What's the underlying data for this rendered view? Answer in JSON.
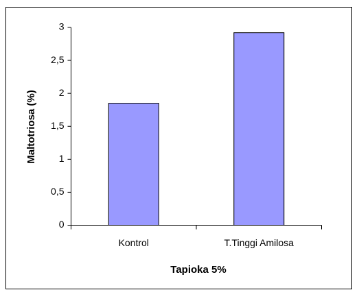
{
  "chart_data": {
    "type": "bar",
    "categories": [
      "Kontrol",
      "T.Tinggi Amilosa"
    ],
    "values": [
      1.85,
      2.92
    ],
    "color": "#9999ff",
    "xlabel": "Tapioka 5%",
    "ylabel": "Maltotriosa (%)",
    "ylim": [
      0,
      3
    ],
    "yticks": [
      0,
      {
        "value": 0.5,
        "label": "0,5"
      },
      1,
      {
        "value": 1.5,
        "label": "1,5"
      },
      2,
      {
        "value": 2.5,
        "label": "2,5"
      },
      3
    ],
    "grid": false
  }
}
